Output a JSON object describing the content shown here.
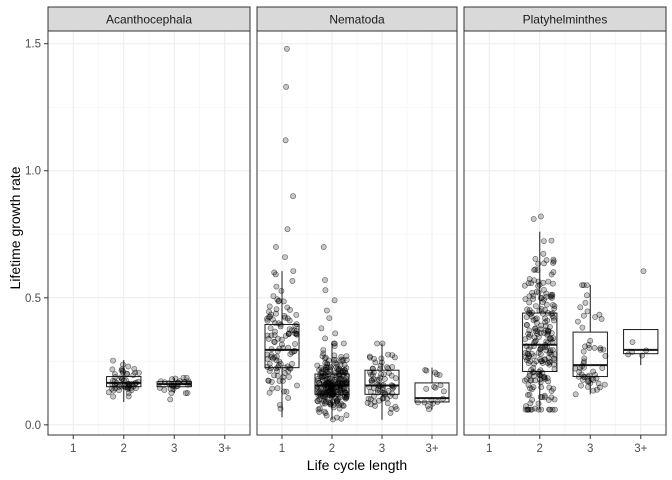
{
  "chart_data": {
    "type": "boxplot_jitter",
    "xlabel": "Life cycle length",
    "ylabel": "Lifetime growth rate",
    "categories": [
      "1",
      "2",
      "3",
      "3+"
    ],
    "ylim": [
      -0.04,
      1.55
    ],
    "y_ticks": [
      0.0,
      0.5,
      1.0,
      1.5
    ],
    "y_tick_labels": [
      "0.0",
      "0.5",
      "1.0",
      "1.5"
    ],
    "y_minor_ticks": [
      0.25,
      0.75,
      1.25
    ],
    "grid": true,
    "panels": [
      {
        "name": "Acanthocephala",
        "boxes": [
          {
            "category": "2",
            "q1": 0.15,
            "median": 0.165,
            "q3": 0.19,
            "whisker_low": 0.09,
            "whisker_high": 0.255,
            "n": 55
          },
          {
            "category": "3",
            "q1": 0.15,
            "median": 0.16,
            "q3": 0.17,
            "whisker_low": 0.125,
            "whisker_high": 0.185,
            "n": 28
          }
        ],
        "outliers": [
          {
            "category": "3",
            "y": 0.1
          }
        ]
      },
      {
        "name": "Nematoda",
        "boxes": [
          {
            "category": "1",
            "q1": 0.225,
            "median": 0.295,
            "q3": 0.395,
            "whisker_low": 0.03,
            "whisker_high": 0.605,
            "n": 110
          },
          {
            "category": "2",
            "q1": 0.12,
            "median": 0.155,
            "q3": 0.2,
            "whisker_low": 0.02,
            "whisker_high": 0.32,
            "n": 240
          },
          {
            "category": "3",
            "q1": 0.12,
            "median": 0.155,
            "q3": 0.215,
            "whisker_low": 0.02,
            "whisker_high": 0.32,
            "n": 75
          },
          {
            "category": "3+",
            "q1": 0.09,
            "median": 0.105,
            "q3": 0.165,
            "whisker_low": 0.06,
            "whisker_high": 0.225,
            "n": 18
          }
        ],
        "outliers": [
          {
            "category": "1",
            "y": 1.48
          },
          {
            "category": "1",
            "y": 1.33
          },
          {
            "category": "1",
            "y": 1.12
          },
          {
            "category": "1",
            "y": 0.9
          },
          {
            "category": "1",
            "y": 0.77
          },
          {
            "category": "1",
            "y": 0.7
          },
          {
            "category": "1",
            "y": 0.66
          },
          {
            "category": "2",
            "y": 0.7
          },
          {
            "category": "2",
            "y": 0.57
          },
          {
            "category": "2",
            "y": 0.53
          },
          {
            "category": "2",
            "y": 0.49
          },
          {
            "category": "2",
            "y": 0.45
          },
          {
            "category": "2",
            "y": 0.42
          },
          {
            "category": "2",
            "y": 0.38
          },
          {
            "category": "2",
            "y": 0.36
          },
          {
            "category": "2",
            "y": 0.34
          }
        ]
      },
      {
        "name": "Platyhelminthes",
        "boxes": [
          {
            "category": "2",
            "q1": 0.21,
            "median": 0.315,
            "q3": 0.44,
            "whisker_low": 0.06,
            "whisker_high": 0.76,
            "n": 220
          },
          {
            "category": "3",
            "q1": 0.19,
            "median": 0.235,
            "q3": 0.365,
            "whisker_low": 0.12,
            "whisker_high": 0.55,
            "n": 55
          },
          {
            "category": "3+",
            "q1": 0.28,
            "median": 0.295,
            "q3": 0.375,
            "whisker_low": 0.235,
            "whisker_high": 0.375,
            "n": 5
          }
        ],
        "outliers": [
          {
            "category": "2",
            "y": 0.82
          },
          {
            "category": "2",
            "y": 0.81
          },
          {
            "category": "3+",
            "y": 0.605
          }
        ]
      }
    ]
  },
  "colors": {
    "strip_fill": "#d9d9d9",
    "panel_border": "#333333",
    "grid_major": "#ebebeb",
    "grid_minor": "#f5f5f5",
    "point_fill": "rgba(0,0,0,0.22)",
    "point_stroke": "rgba(0,0,0,0.6)",
    "box_stroke": "#1a1a1a"
  }
}
